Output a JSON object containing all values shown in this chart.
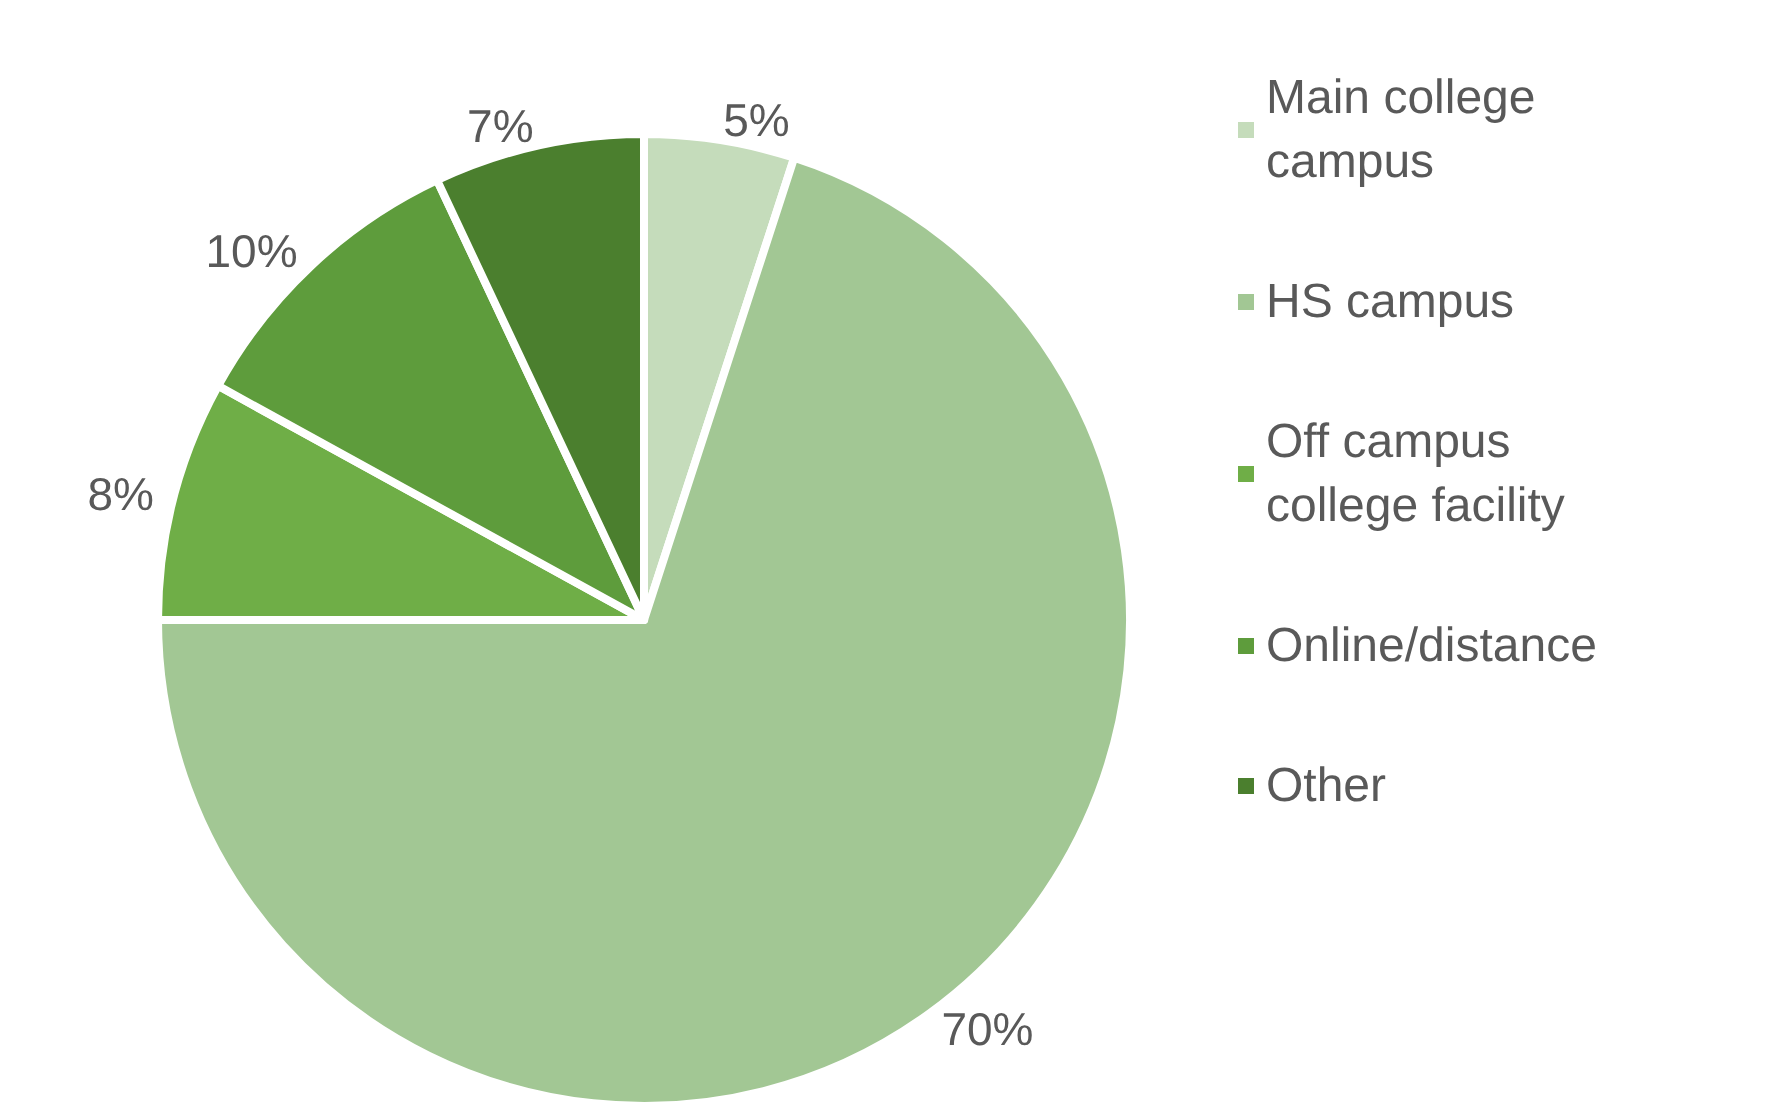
{
  "chart_data": {
    "type": "pie",
    "categories": [
      "Main college campus",
      "HS campus",
      "Off campus college facility",
      "Online/distance",
      "Other"
    ],
    "values": [
      5,
      70,
      8,
      10,
      7
    ],
    "colors": [
      "#c5dcbb",
      "#a2c794",
      "#6fae47",
      "#5e9c3c",
      "#4b7f2e"
    ],
    "value_labels": [
      "5%",
      "70%",
      "8%",
      "10%",
      "7%"
    ],
    "legend": "right"
  }
}
